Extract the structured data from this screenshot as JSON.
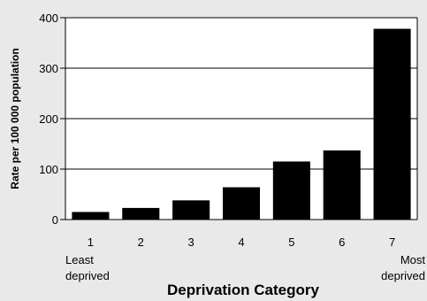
{
  "chart_data": {
    "type": "bar",
    "title": "",
    "xlabel": "Deprivation Category",
    "ylabel": "Rate per 100 000 population",
    "categories": [
      "1",
      "2",
      "3",
      "4",
      "5",
      "6",
      "7"
    ],
    "values": [
      15,
      23,
      38,
      64,
      115,
      137,
      378
    ],
    "ylim": [
      0,
      400
    ],
    "yticks": [
      0,
      100,
      200,
      300,
      400
    ],
    "grid": "horizontal",
    "legend": "none",
    "category_notes": {
      "least": [
        "Least",
        "deprived"
      ],
      "most": [
        "Most",
        "deprived"
      ]
    },
    "colors": {
      "background": "#e9e9e9",
      "plot_background": "#ffffff",
      "bar": "#000000"
    }
  }
}
